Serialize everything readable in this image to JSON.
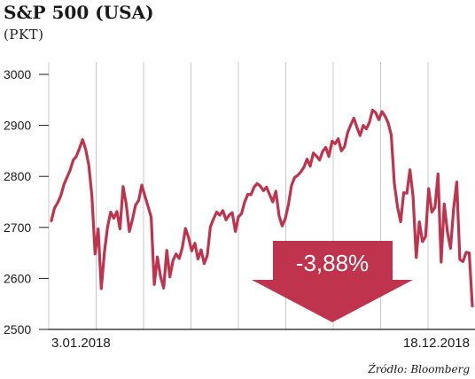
{
  "chart_data": {
    "type": "line",
    "title": "S&P 500 (USA)",
    "subtitle": "(PKT)",
    "x_start_label": "3.01.2018",
    "x_end_label": "18.12.2018",
    "ylim": [
      2500,
      3000
    ],
    "yticks": [
      "3000",
      "2900",
      "2800",
      "2700",
      "2600",
      "2500"
    ],
    "grid": "vertical",
    "annotation": "-3,88%",
    "source": "Źródło: Bloomberg",
    "line_color": "#c0334c",
    "series": [
      {
        "values": [
          2713,
          2738,
          2748,
          2762,
          2784,
          2798,
          2812,
          2832,
          2839,
          2855,
          2872,
          2853,
          2822,
          2762,
          2648,
          2697,
          2580,
          2651,
          2700,
          2730,
          2718,
          2731,
          2697,
          2780,
          2746,
          2692,
          2716,
          2744,
          2753,
          2783,
          2761,
          2741,
          2720,
          2588,
          2642,
          2604,
          2581,
          2655,
          2603,
          2635,
          2648,
          2639,
          2661,
          2698,
          2680,
          2654,
          2669,
          2638,
          2656,
          2629,
          2645,
          2701,
          2717,
          2730,
          2724,
          2733,
          2715,
          2724,
          2729,
          2692,
          2721,
          2727,
          2750,
          2765,
          2764,
          2779,
          2786,
          2781,
          2772,
          2779,
          2764,
          2750,
          2771,
          2723,
          2703,
          2717,
          2744,
          2782,
          2798,
          2802,
          2809,
          2818,
          2834,
          2820,
          2846,
          2840,
          2832,
          2849,
          2857,
          2839,
          2869,
          2864,
          2874,
          2850,
          2858,
          2886,
          2901,
          2914,
          2896,
          2880,
          2900,
          2893,
          2906,
          2930,
          2925,
          2911,
          2927,
          2918,
          2905,
          2881,
          2786,
          2740,
          2711,
          2768,
          2767,
          2813,
          2761,
          2641,
          2711,
          2672,
          2682,
          2776,
          2730,
          2739,
          2805,
          2632,
          2746,
          2691,
          2659,
          2737,
          2789,
          2637,
          2633,
          2651,
          2650,
          2546
        ]
      }
    ]
  }
}
